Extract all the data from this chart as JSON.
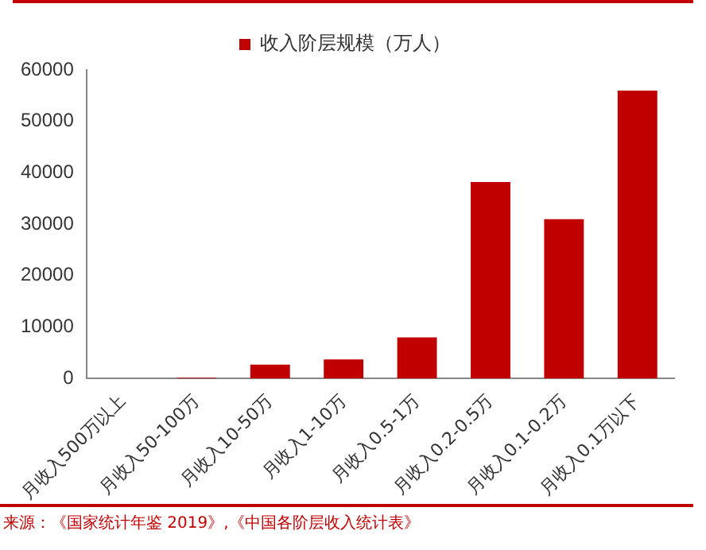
{
  "chart_data": {
    "type": "bar",
    "categories": [
      "月收入500万以上",
      "月收入50-100万",
      "月收入10-50万",
      "月收入1-10万",
      "月收入0.5-1万",
      "月收入0.2-0.5万",
      "月收入0.1-0.2万",
      "月收入0.1万以下"
    ],
    "series": [
      {
        "name": "收入阶层规模（万人）",
        "color": "#c00000",
        "values": [
          20,
          150,
          2700,
          3700,
          8000,
          38200,
          31000,
          56000
        ]
      }
    ],
    "ylim": [
      0,
      60000
    ],
    "yticks": [
      0,
      10000,
      20000,
      30000,
      40000,
      50000,
      60000
    ],
    "grid": false,
    "legend": "top",
    "annotations": [
      "来源：《国家统计年鉴 2019》,《中国各阶层收入统计表》"
    ]
  }
}
